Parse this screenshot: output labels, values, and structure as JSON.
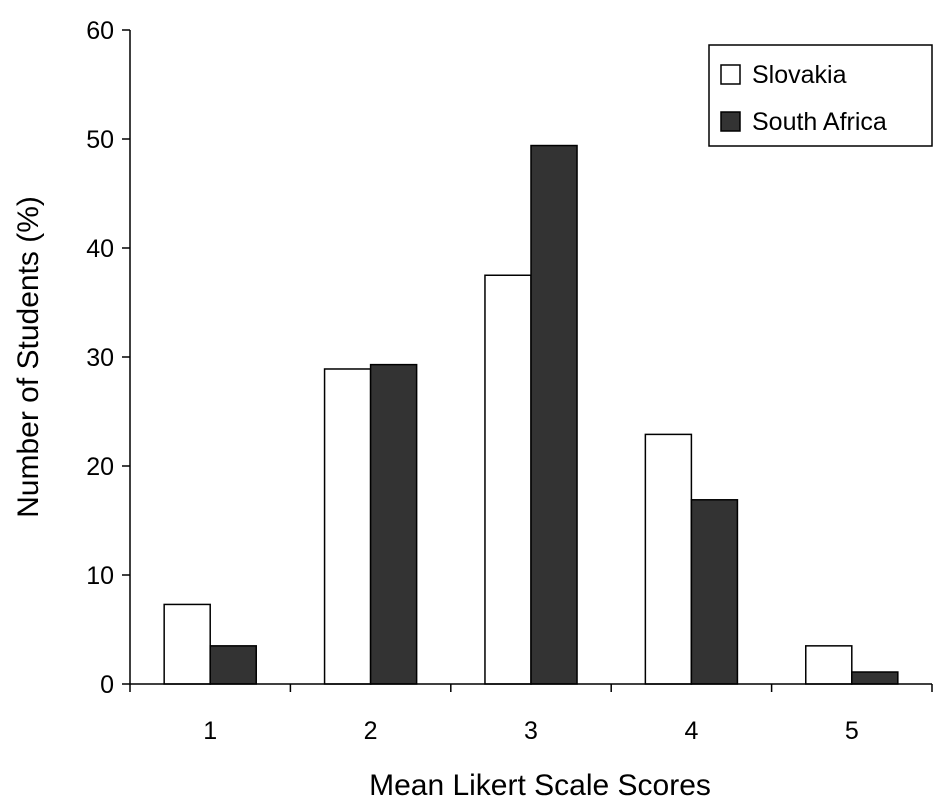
{
  "chart_data": {
    "type": "bar",
    "title": "",
    "xlabel": "Mean Likert Scale Scores",
    "ylabel": "Number of Students (%)",
    "categories": [
      "1",
      "2",
      "3",
      "4",
      "5"
    ],
    "ylim": [
      0,
      60
    ],
    "yticks": [
      0,
      10,
      20,
      30,
      40,
      50,
      60
    ],
    "ytick_labels": [
      "0",
      "10",
      "20",
      "30",
      "40",
      "50",
      "60"
    ],
    "grid": false,
    "legend_position": "top-right",
    "series": [
      {
        "name": "Slovakia",
        "color": "#ffffff",
        "values": [
          7.3,
          28.9,
          37.5,
          22.9,
          3.5
        ]
      },
      {
        "name": "South Africa",
        "color": "#333333",
        "values": [
          3.5,
          29.3,
          49.4,
          16.9,
          1.1
        ]
      }
    ]
  }
}
